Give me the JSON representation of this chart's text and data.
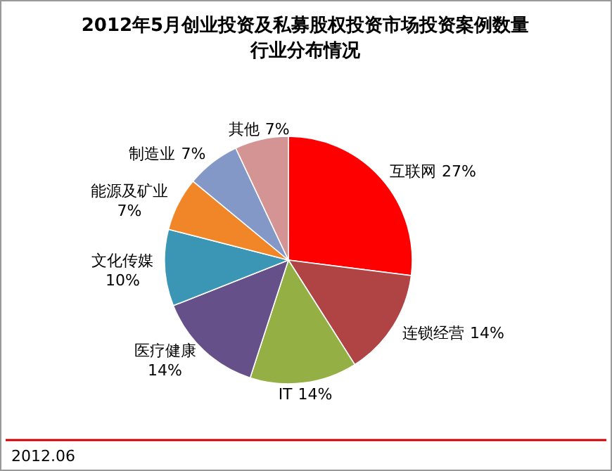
{
  "chart_data": {
    "type": "pie",
    "title": "2012年5月创业投资及私募股权投资市场投资案例数量行业分布情况",
    "categories": [
      "互联网",
      "连锁经营",
      "IT",
      "医疗健康",
      "文化传媒",
      "能源及矿业",
      "制造业",
      "其他"
    ],
    "values": [
      27,
      14,
      14,
      14,
      10,
      7,
      7,
      7
    ],
    "colors": [
      "#ff0000",
      "#b04444",
      "#94b044",
      "#66508a",
      "#3a96b4",
      "#f08628",
      "#8498c8",
      "#d49494"
    ],
    "value_labels": [
      "27%",
      "14%",
      "14%",
      "14%",
      "10%",
      "7%",
      "7%",
      "7%"
    ],
    "legend": false,
    "annotations": [
      "2012.06"
    ]
  }
}
